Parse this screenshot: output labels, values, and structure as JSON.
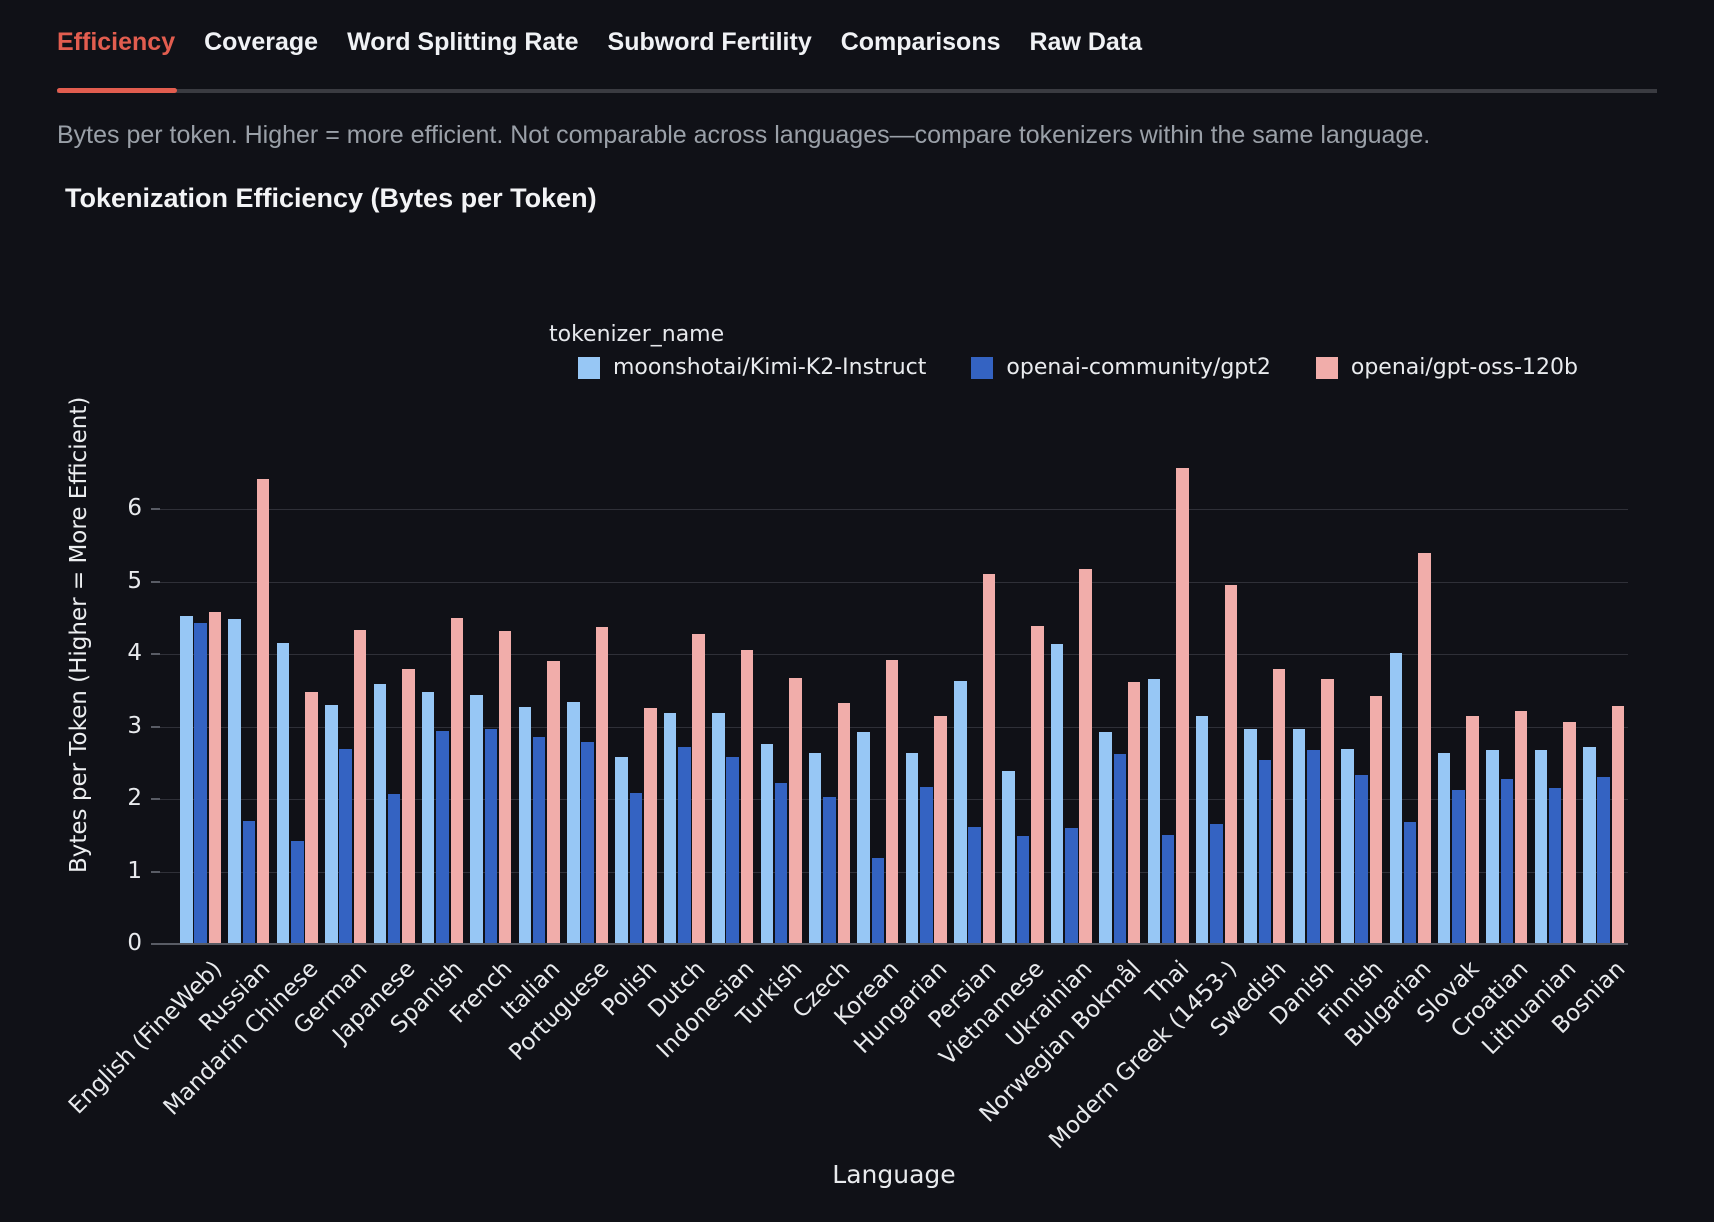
{
  "tabs": {
    "items": [
      {
        "label": "Efficiency",
        "active": true
      },
      {
        "label": "Coverage",
        "active": false
      },
      {
        "label": "Word Splitting Rate",
        "active": false
      },
      {
        "label": "Subword Fertility",
        "active": false
      },
      {
        "label": "Comparisons",
        "active": false
      },
      {
        "label": "Raw Data",
        "active": false
      }
    ]
  },
  "description": "Bytes per token. Higher = more efficient. Not comparable across languages—compare tokenizers within the same language.",
  "ui_colors": {
    "accent": "#e25d4f",
    "background": "#101117",
    "muted_text": "#9aa0a8",
    "text": "#f0f2f5",
    "gridline": "#2f3038",
    "axis": "#595c65"
  },
  "chart_data": {
    "type": "bar",
    "title": "Tokenization Efficiency (Bytes per Token)",
    "legend_title": "tokenizer_name",
    "xlabel": "Language",
    "ylabel": "Bytes per Token (Higher = More Efficient)",
    "ylim": [
      0,
      7
    ],
    "yticks": [
      0,
      1,
      2,
      3,
      4,
      5,
      6
    ],
    "grid": true,
    "legend_position": "top-center",
    "categories": [
      "English (FineWeb)",
      "Russian",
      "Mandarin Chinese",
      "German",
      "Japanese",
      "Spanish",
      "French",
      "Italian",
      "Portuguese",
      "Polish",
      "Dutch",
      "Indonesian",
      "Turkish",
      "Czech",
      "Korean",
      "Hungarian",
      "Persian",
      "Vietnamese",
      "Ukrainian",
      "Norwegian Bokmål",
      "Thai",
      "Modern Greek (1453-)",
      "Swedish",
      "Danish",
      "Finnish",
      "Bulgarian",
      "Slovak",
      "Croatian",
      "Lithuanian",
      "Bosnian"
    ],
    "series": [
      {
        "name": "moonshotai/Kimi-K2-Instruct",
        "color": "#97c7f5",
        "values": [
          4.53,
          4.48,
          4.15,
          3.29,
          3.58,
          3.47,
          3.43,
          3.27,
          3.34,
          2.58,
          3.19,
          3.18,
          2.76,
          2.64,
          2.92,
          2.64,
          3.63,
          2.38,
          4.14,
          2.93,
          3.65,
          3.15,
          2.97,
          2.97,
          2.69,
          4.01,
          2.63,
          2.68,
          2.68,
          2.72
        ]
      },
      {
        "name": "openai-community/gpt2",
        "color": "#3463c2",
        "values": [
          4.43,
          1.7,
          1.42,
          2.69,
          2.07,
          2.94,
          2.96,
          2.85,
          2.78,
          2.08,
          2.72,
          2.58,
          2.22,
          2.03,
          1.18,
          2.16,
          1.62,
          1.49,
          1.6,
          2.62,
          1.5,
          1.65,
          2.54,
          2.68,
          2.33,
          1.68,
          2.12,
          2.27,
          2.15,
          2.3
        ]
      },
      {
        "name": "openai/gpt-oss-120b",
        "color": "#f1adaa",
        "values": [
          4.58,
          6.42,
          3.48,
          4.33,
          3.79,
          4.49,
          4.32,
          3.91,
          4.37,
          3.26,
          4.28,
          4.06,
          3.67,
          3.33,
          3.92,
          3.15,
          5.11,
          4.39,
          5.17,
          3.62,
          6.56,
          4.95,
          3.79,
          3.65,
          3.42,
          5.39,
          3.15,
          3.22,
          3.06,
          3.28
        ]
      }
    ]
  }
}
